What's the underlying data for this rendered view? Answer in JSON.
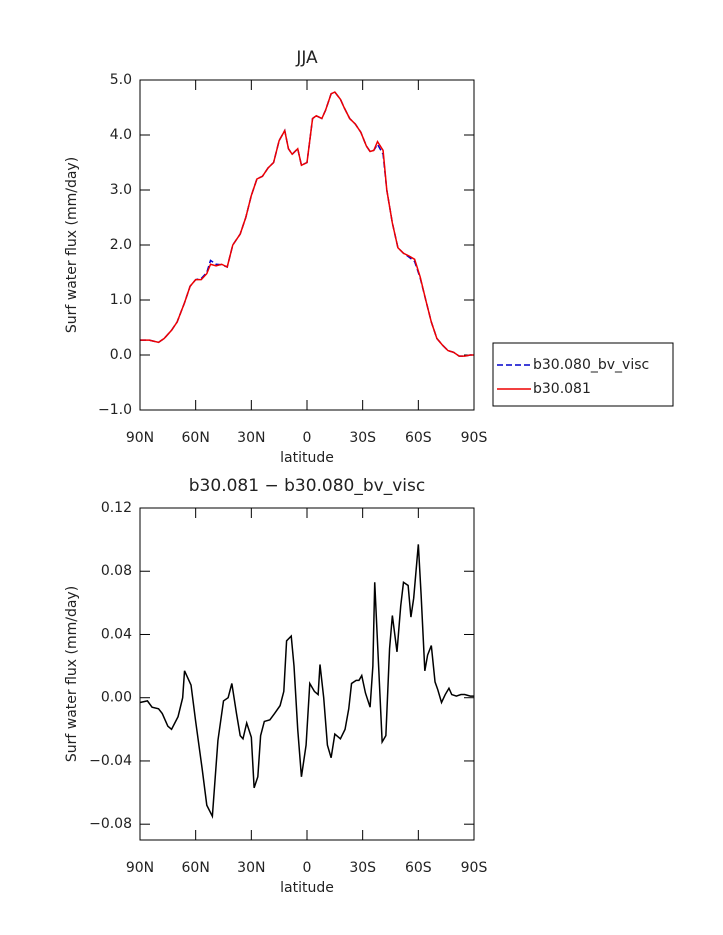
{
  "chart_data": [
    {
      "type": "line",
      "title": "JJA",
      "x_label": "latitude",
      "y_label": "Surf water flux (mm/day)",
      "x": [
        90,
        85,
        80,
        77,
        73,
        70,
        66,
        63,
        60,
        57,
        54,
        52,
        49,
        46,
        43,
        40,
        36,
        33,
        30,
        27,
        24,
        21,
        18,
        15,
        12,
        10,
        8,
        5,
        3,
        0,
        -3,
        -5,
        -8,
        -10,
        -13,
        -15,
        -18,
        -20,
        -23,
        -26,
        -29,
        -32,
        -34,
        -36,
        -38,
        -41,
        -43,
        -46,
        -49,
        -52,
        -55,
        -58,
        -61,
        -64,
        -67,
        -70,
        -73,
        -76,
        -79,
        -82,
        -85,
        -88,
        -90
      ],
      "series": [
        {
          "name": "b30.080_bv_visc",
          "color": "#0000cc",
          "style": "dashed",
          "values": [
            0.27,
            0.27,
            0.23,
            0.3,
            0.45,
            0.6,
            0.95,
            1.25,
            1.37,
            1.39,
            1.5,
            1.72,
            1.65,
            1.64,
            1.6,
            2.0,
            2.2,
            2.5,
            2.9,
            3.2,
            3.25,
            3.4,
            3.5,
            3.9,
            4.08,
            3.75,
            3.65,
            3.75,
            3.45,
            3.5,
            4.3,
            4.35,
            4.3,
            4.45,
            4.75,
            4.78,
            4.65,
            4.5,
            4.3,
            4.2,
            4.05,
            3.8,
            3.7,
            3.72,
            3.83,
            3.65,
            3.0,
            2.4,
            1.95,
            1.85,
            1.78,
            1.7,
            1.4,
            1.0,
            0.6,
            0.3,
            0.18,
            0.08,
            0.05,
            -0.02,
            -0.02,
            0.0,
            0.0
          ]
        },
        {
          "name": "b30.081",
          "color": "#ee0000",
          "style": "solid",
          "values": [
            0.27,
            0.27,
            0.23,
            0.3,
            0.45,
            0.6,
            0.95,
            1.25,
            1.37,
            1.37,
            1.48,
            1.65,
            1.62,
            1.65,
            1.6,
            2.0,
            2.2,
            2.5,
            2.9,
            3.2,
            3.25,
            3.4,
            3.5,
            3.9,
            4.08,
            3.75,
            3.65,
            3.75,
            3.45,
            3.5,
            4.3,
            4.35,
            4.3,
            4.45,
            4.75,
            4.78,
            4.65,
            4.5,
            4.3,
            4.2,
            4.05,
            3.8,
            3.7,
            3.72,
            3.88,
            3.72,
            3.0,
            2.4,
            1.95,
            1.85,
            1.8,
            1.74,
            1.42,
            1.0,
            0.6,
            0.3,
            0.18,
            0.08,
            0.05,
            -0.02,
            -0.02,
            0.0,
            0.0
          ]
        }
      ],
      "xlim": [
        90,
        -90
      ],
      "xticks": [
        {
          "value": 90,
          "label": "90N"
        },
        {
          "value": 60,
          "label": "60N"
        },
        {
          "value": 30,
          "label": "30N"
        },
        0,
        {
          "value": -30,
          "label": "30S"
        },
        {
          "value": -60,
          "label": "60S"
        },
        {
          "value": -90,
          "label": "90S"
        }
      ],
      "ylim": [
        -1,
        5
      ],
      "yticks": [
        {
          "value": -1,
          "label": "−1.0"
        },
        {
          "value": 0,
          "label": "0.0"
        },
        {
          "value": 1,
          "label": "1.0"
        },
        {
          "value": 2,
          "label": "2.0"
        },
        {
          "value": 3,
          "label": "3.0"
        },
        {
          "value": 4,
          "label": "4.0"
        },
        {
          "value": 5,
          "label": "5.0"
        }
      ],
      "legend": "outside-right"
    },
    {
      "type": "line",
      "title": "b30.081 − b30.080_bv_visc",
      "x_label": "latitude",
      "y_label": "Surf water flux (mm/day)",
      "x": [
        90,
        86,
        83.5,
        80,
        78,
        75,
        73,
        69.5,
        67,
        66,
        62.5,
        60,
        56.5,
        54,
        51,
        48,
        45,
        42.5,
        40.5,
        38,
        36,
        34.5,
        32.5,
        30,
        28.5,
        26.5,
        25,
        23,
        20,
        17.5,
        14.5,
        12.5,
        11,
        8.5,
        7,
        5,
        3,
        0.5,
        -1.5,
        -4,
        -6,
        -7,
        -9,
        -11,
        -13,
        -15,
        -18,
        -20.5,
        -22.5,
        -24,
        -26.5,
        -28,
        -29.5,
        -31.5,
        -34,
        -35.5,
        -36.5,
        -38,
        -40.5,
        -42.5,
        -44.5,
        -46,
        -48.5,
        -50.5,
        -52,
        -54.5,
        -56,
        -57.5,
        -60,
        -61.5,
        -63.5,
        -65,
        -67,
        -69,
        -70.5,
        -72.5,
        -74.5,
        -76.5,
        -78,
        -80.5,
        -83,
        -85,
        -88,
        -90
      ],
      "color": "#000000",
      "values": [
        -0.003,
        -0.002,
        -0.006,
        -0.007,
        -0.01,
        -0.018,
        -0.02,
        -0.012,
        0.0,
        0.017,
        0.008,
        -0.015,
        -0.045,
        -0.068,
        -0.075,
        -0.027,
        -0.002,
        0.0,
        0.009,
        -0.01,
        -0.024,
        -0.026,
        -0.016,
        -0.025,
        -0.057,
        -0.05,
        -0.024,
        -0.015,
        -0.014,
        -0.01,
        -0.005,
        0.004,
        0.036,
        0.039,
        0.02,
        -0.02,
        -0.05,
        -0.03,
        0.009,
        0.004,
        0.002,
        0.021,
        0.0,
        -0.03,
        -0.038,
        -0.023,
        -0.026,
        -0.02,
        -0.007,
        0.009,
        0.011,
        0.011,
        0.014,
        0.003,
        -0.006,
        0.02,
        0.073,
        0.035,
        -0.028,
        -0.024,
        0.031,
        0.052,
        0.029,
        0.058,
        0.073,
        0.071,
        0.051,
        0.063,
        0.097,
        0.065,
        0.017,
        0.027,
        0.033,
        0.01,
        0.005,
        -0.003,
        0.002,
        0.006,
        0.002,
        0.001,
        0.002,
        0.002,
        0.001,
        0.001
      ],
      "xlim": [
        90,
        -90
      ],
      "xticks": [
        {
          "value": 90,
          "label": "90N"
        },
        {
          "value": 60,
          "label": "60N"
        },
        {
          "value": 30,
          "label": "30N"
        },
        0,
        {
          "value": -30,
          "label": "30S"
        },
        {
          "value": -60,
          "label": "60S"
        },
        {
          "value": -90,
          "label": "90S"
        }
      ],
      "ylim": [
        -0.09,
        0.12
      ],
      "yticks": [
        {
          "value": -0.08,
          "label": "−0.08"
        },
        {
          "value": -0.04,
          "label": "−0.04"
        },
        {
          "value": 0,
          "label": "0.00"
        },
        0.04,
        0.08,
        0.12
      ]
    }
  ]
}
